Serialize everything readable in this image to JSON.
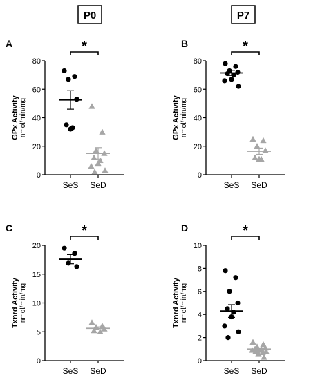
{
  "headers": [
    {
      "text": "P0"
    },
    {
      "text": "P7"
    }
  ],
  "chart_data": [
    {
      "panel": "A",
      "type": "scatter",
      "ylabel": "GPx Activity",
      "yunits": "nmol/min/mg",
      "ylim": [
        0,
        80
      ],
      "yticks": [
        0,
        20,
        40,
        60,
        80
      ],
      "categories": [
        "SeS",
        "SeD"
      ],
      "significance": "*",
      "series": [
        {
          "category": "SeS",
          "marker": "circle",
          "color": "#000000",
          "values": [
            73,
            69,
            67,
            53,
            35,
            33,
            32
          ],
          "mean": 52.5,
          "sem": 6.5
        },
        {
          "category": "SeD",
          "marker": "triangle",
          "color": "#a6a6a6",
          "values": [
            48,
            30,
            17,
            15,
            12,
            10,
            8,
            6,
            3,
            2
          ],
          "mean": 15,
          "sem": 4
        }
      ]
    },
    {
      "panel": "B",
      "type": "scatter",
      "ylabel": "GPx Activity",
      "yunits": "nmol/min/mg",
      "ylim": [
        0,
        80
      ],
      "yticks": [
        0,
        20,
        40,
        60,
        80
      ],
      "categories": [
        "SeS",
        "SeD"
      ],
      "significance": "*",
      "series": [
        {
          "category": "SeS",
          "marker": "circle",
          "color": "#000000",
          "values": [
            78,
            76,
            73,
            72,
            71,
            70,
            67,
            66,
            62
          ],
          "mean": 71.5,
          "sem": 1.8
        },
        {
          "category": "SeD",
          "marker": "triangle",
          "color": "#a6a6a6",
          "values": [
            25,
            24,
            20,
            17,
            12,
            11,
            11
          ],
          "mean": 16.5,
          "sem": 2.2
        }
      ]
    },
    {
      "panel": "C",
      "type": "scatter",
      "ylabel": "Txnrd Activity",
      "yunits": "nmol/min/mg",
      "ylim": [
        0,
        20
      ],
      "yticks": [
        0,
        5,
        10,
        15,
        20
      ],
      "categories": [
        "SeS",
        "SeD"
      ],
      "significance": "*",
      "series": [
        {
          "category": "SeS",
          "marker": "circle",
          "color": "#000000",
          "values": [
            19.5,
            18.6,
            16.9,
            16.3
          ],
          "mean": 17.6,
          "sem": 0.8
        },
        {
          "category": "SeD",
          "marker": "triangle",
          "color": "#a6a6a6",
          "values": [
            6.6,
            6.0,
            5.8,
            5.5,
            5.2,
            5.0
          ],
          "mean": 5.6,
          "sem": 0.25
        }
      ]
    },
    {
      "panel": "D",
      "type": "scatter",
      "ylabel": "Txnrd Activity",
      "yunits": "nmol/min/mg",
      "ylim": [
        0,
        10
      ],
      "yticks": [
        0,
        2,
        4,
        6,
        8,
        10
      ],
      "categories": [
        "SeS",
        "SeD"
      ],
      "significance": "*",
      "series": [
        {
          "category": "SeS",
          "marker": "circle",
          "color": "#000000",
          "values": [
            7.8,
            7.2,
            6.0,
            5.0,
            4.5,
            4.2,
            3.8,
            3.0,
            2.5,
            2.0
          ],
          "mean": 4.3,
          "sem": 0.55
        },
        {
          "category": "SeD",
          "marker": "triangle",
          "color": "#a6a6a6",
          "values": [
            1.6,
            1.4,
            1.2,
            1.1,
            1.0,
            1.0,
            0.9,
            0.9,
            0.8,
            0.8,
            0.7,
            0.6,
            0.3
          ],
          "mean": 1.0,
          "sem": 0.1
        }
      ]
    }
  ]
}
